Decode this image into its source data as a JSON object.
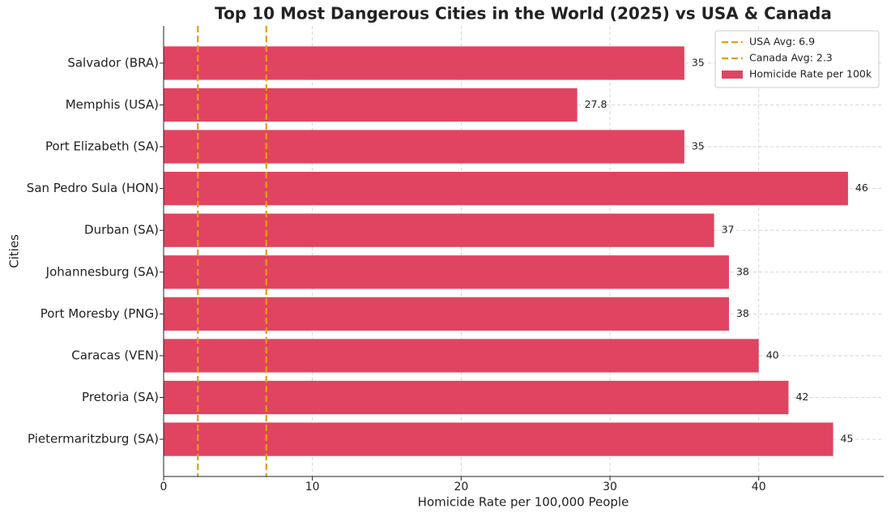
{
  "chart_data": {
    "type": "barh",
    "title": "Top 10 Most Dangerous Cities in the World (2025) vs USA & Canada",
    "x_label": "Homicide Rate per 100,000 People",
    "y_label": "Cities",
    "categories": [
      "Salvador (BRA)",
      "Memphis (USA)",
      "Port Elizabeth (SA)",
      "San Pedro Sula (HON)",
      "Durban (SA)",
      "Johannesburg (SA)",
      "Port Moresby (PNG)",
      "Caracas (VEN)",
      "Pretoria (SA)",
      "Pietermaritzburg (SA)"
    ],
    "series": [
      {
        "name": "Homicide Rate per 100k",
        "color": "#e04461",
        "values": [
          35,
          27.8,
          35,
          46,
          37,
          38,
          38,
          40,
          42,
          45
        ]
      }
    ],
    "reference_lines": [
      {
        "name": "USA Avg: 6.9",
        "value": 6.9,
        "color": "#e69f00"
      },
      {
        "name": "Canada Avg: 2.3",
        "value": 2.3,
        "color": "#e69f00"
      }
    ],
    "xlim": [
      0,
      48.4
    ],
    "xticks": [
      0,
      10,
      20,
      30,
      40
    ],
    "grid": true,
    "legend": "upper-right"
  }
}
